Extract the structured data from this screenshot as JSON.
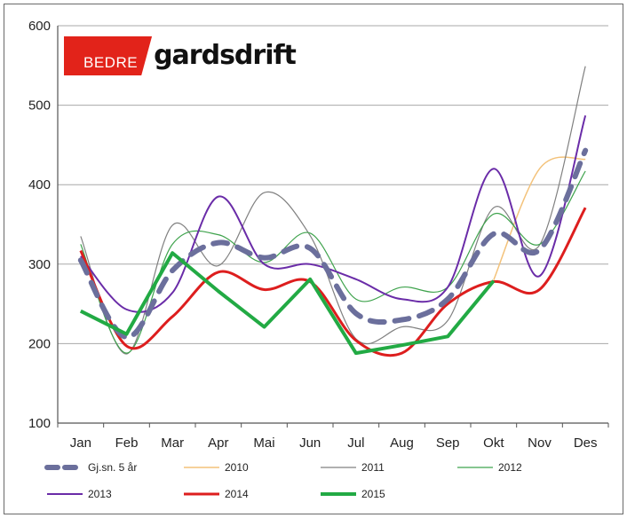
{
  "logo": {
    "part1": "BEDRE",
    "part2": "gardsdrift"
  },
  "chart_data": {
    "type": "line",
    "title": "",
    "xlabel": "",
    "ylabel": "",
    "categories": [
      "Jan",
      "Feb",
      "Mar",
      "Apr",
      "Mai",
      "Jun",
      "Jul",
      "Aug",
      "Sep",
      "Okt",
      "Nov",
      "Des"
    ],
    "ylim": [
      100,
      600
    ],
    "yticks": [
      100,
      200,
      300,
      400,
      500,
      600
    ],
    "grid": "horizontal",
    "legend_position": "bottom",
    "series": [
      {
        "name": "Gj.sn. 5 år",
        "color": "#6b6f9c",
        "dashed": true,
        "width": 6,
        "smooth": true,
        "values": [
          305,
          208,
          292,
          327,
          308,
          320,
          238,
          230,
          256,
          338,
          318,
          443
        ]
      },
      {
        "name": "2010",
        "color": "#f3c27a",
        "dashed": false,
        "width": 1.5,
        "smooth": true,
        "values": [
          null,
          null,
          null,
          null,
          null,
          null,
          null,
          null,
          null,
          280,
          420,
          432
        ]
      },
      {
        "name": "2011",
        "color": "#808080",
        "dashed": false,
        "width": 1.2,
        "smooth": true,
        "values": [
          335,
          187,
          349,
          298,
          390,
          336,
          206,
          221,
          229,
          371,
          324,
          549
        ]
      },
      {
        "name": "2012",
        "color": "#3fa34d",
        "dashed": false,
        "width": 1.2,
        "smooth": true,
        "values": [
          325,
          188,
          325,
          337,
          302,
          339,
          256,
          271,
          271,
          363,
          325,
          417
        ]
      },
      {
        "name": "2013",
        "color": "#6a2ca8",
        "dashed": false,
        "width": 2,
        "smooth": true,
        "values": [
          310,
          243,
          264,
          385,
          300,
          300,
          281,
          256,
          271,
          420,
          285,
          487
        ]
      },
      {
        "name": "2014",
        "color": "#dd1e1e",
        "dashed": false,
        "width": 3,
        "smooth": true,
        "values": [
          317,
          197,
          234,
          290,
          268,
          278,
          204,
          188,
          250,
          278,
          268,
          371
        ]
      },
      {
        "name": "2015",
        "color": "#22aa44",
        "dashed": false,
        "width": 4,
        "smooth": false,
        "values": [
          241,
          212,
          314,
          266,
          221,
          281,
          188,
          198,
          209,
          279,
          null,
          null
        ]
      }
    ]
  }
}
